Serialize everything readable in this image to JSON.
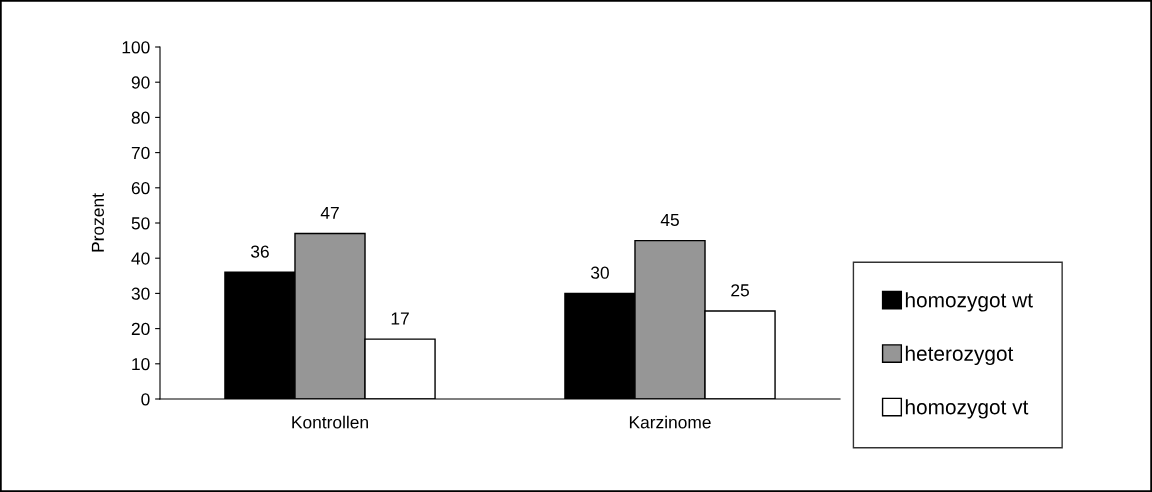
{
  "chart_data": {
    "type": "bar",
    "ylabel": "Prozent",
    "categories": [
      "Kontrollen",
      "Karzinome"
    ],
    "series": [
      {
        "name": "homozygot wt",
        "color": "#000000",
        "values": [
          36,
          30
        ]
      },
      {
        "name": "heterozygot",
        "color": "#969696",
        "values": [
          47,
          45
        ]
      },
      {
        "name": "homozygot vt",
        "color": "#ffffff",
        "values": [
          17,
          25
        ]
      }
    ],
    "ylim": [
      0,
      100
    ],
    "yticks": [
      0,
      10,
      20,
      30,
      40,
      50,
      60,
      70,
      80,
      90,
      100
    ],
    "data_labels": true,
    "grid": false,
    "legend": "right"
  }
}
